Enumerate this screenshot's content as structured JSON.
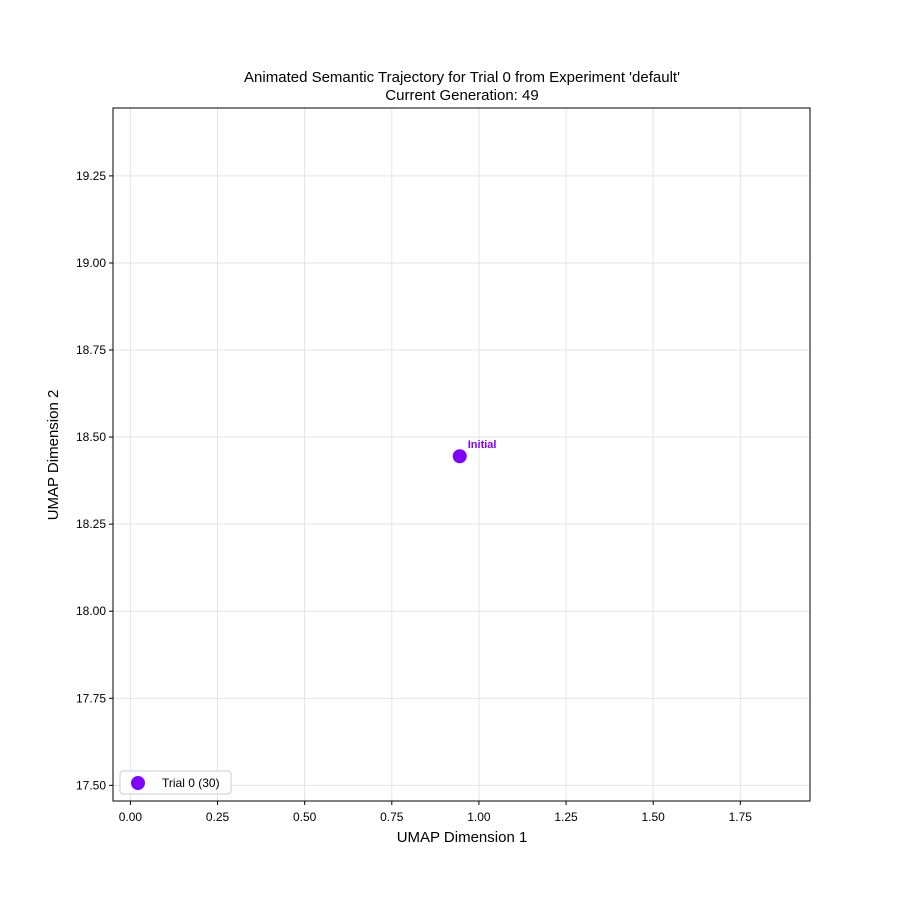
{
  "chart_data": {
    "type": "scatter",
    "title": "Animated Semantic Trajectory for Trial 0 from Experiment 'default'",
    "subtitle": "Current Generation: 49",
    "xlabel": "UMAP Dimension 1",
    "ylabel": "UMAP Dimension 2",
    "xlim": [
      -0.05,
      1.95
    ],
    "ylim": [
      17.455,
      19.445
    ],
    "xticks": [
      "0.00",
      "0.25",
      "0.50",
      "0.75",
      "1.00",
      "1.25",
      "1.50",
      "1.75"
    ],
    "yticks": [
      "17.50",
      "17.75",
      "18.00",
      "18.25",
      "18.50",
      "18.75",
      "19.00",
      "19.25"
    ],
    "grid": true,
    "legend_position": "lower-left",
    "series": [
      {
        "name": "Trial 0 (30)",
        "color": "#7f00ff",
        "points": [
          {
            "x": 0.945,
            "y": 18.445,
            "label": "Initial"
          }
        ]
      }
    ]
  }
}
